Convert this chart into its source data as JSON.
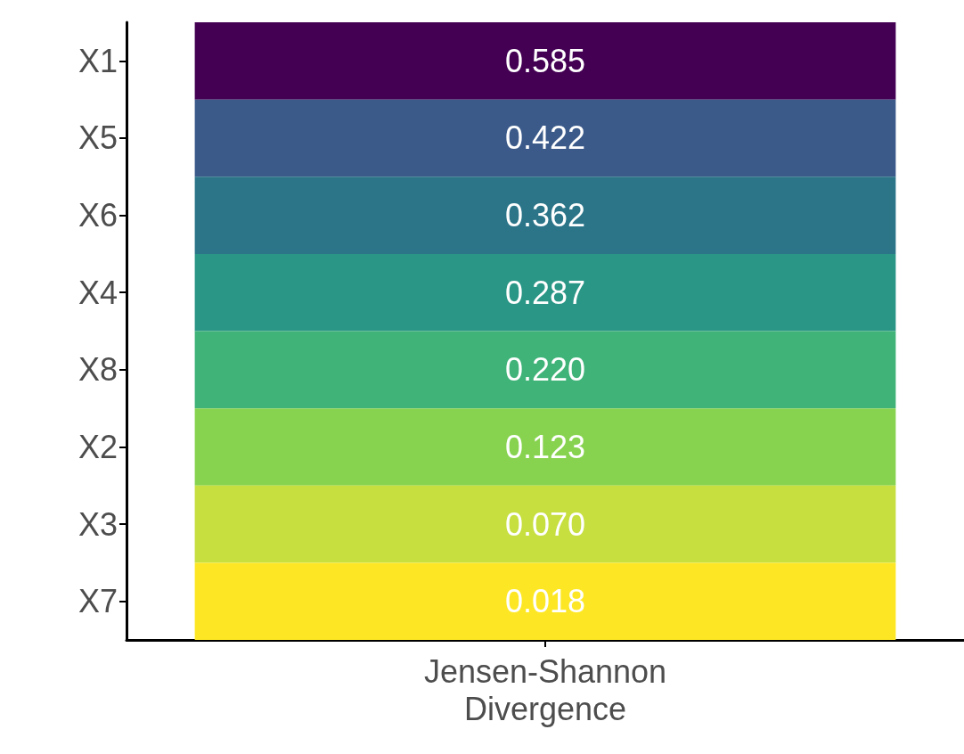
{
  "chart_data": {
    "type": "heatmap",
    "categories": [
      "Jensen-Shannon\nDivergence"
    ],
    "y_categories": [
      "X1",
      "X5",
      "X6",
      "X4",
      "X8",
      "X2",
      "X3",
      "X7"
    ],
    "cells": [
      [
        0.585
      ],
      [
        0.422
      ],
      [
        0.362
      ],
      [
        0.287
      ],
      [
        0.22
      ],
      [
        0.123
      ],
      [
        0.07
      ],
      [
        0.018
      ]
    ],
    "cell_labels": [
      [
        "0.585"
      ],
      [
        "0.422"
      ],
      [
        "0.362"
      ],
      [
        "0.287"
      ],
      [
        "0.220"
      ],
      [
        "0.123"
      ],
      [
        "0.070"
      ],
      [
        "0.018"
      ]
    ],
    "colors": [
      "#440154",
      "#3b5a8a",
      "#2c7589",
      "#2a9686",
      "#3fb378",
      "#87d34f",
      "#c7df3f",
      "#fde725"
    ]
  }
}
